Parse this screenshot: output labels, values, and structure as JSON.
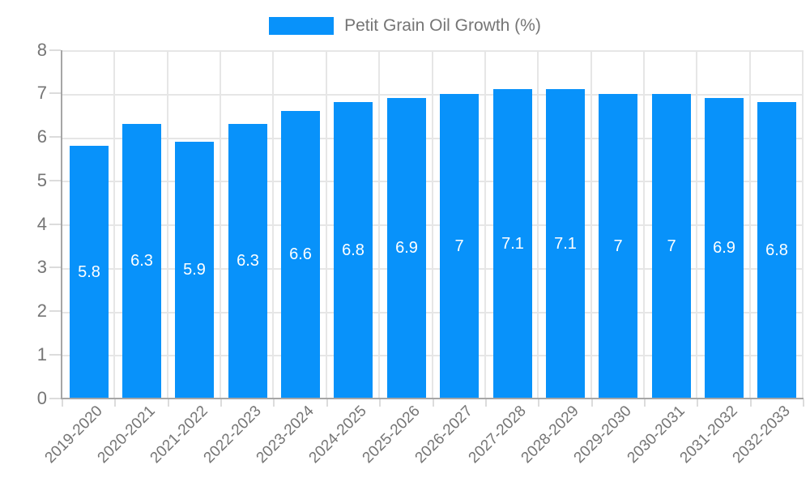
{
  "legend": {
    "label": "Petit Grain Oil Growth (%)"
  },
  "chart_data": {
    "type": "bar",
    "title": "Petit Grain Oil Growth (%)",
    "xlabel": "",
    "ylabel": "",
    "categories": [
      "2019-2020",
      "2020-2021",
      "2021-2022",
      "2022-2023",
      "2023-2024",
      "2024-2025",
      "2025-2026",
      "2026-2027",
      "2027-2028",
      "2028-2029",
      "2029-2030",
      "2030-2031",
      "2031-2032",
      "2032-2033"
    ],
    "values": [
      5.8,
      6.3,
      5.9,
      6.3,
      6.6,
      6.8,
      6.9,
      7,
      7.1,
      7.1,
      7,
      7,
      6.9,
      6.8
    ],
    "series": [
      {
        "name": "Petit Grain Oil Growth (%)",
        "values": [
          5.8,
          6.3,
          5.9,
          6.3,
          6.6,
          6.8,
          6.9,
          7,
          7.1,
          7.1,
          7,
          7,
          6.9,
          6.8
        ]
      }
    ],
    "ylim": [
      0,
      8
    ],
    "yticks": [
      0,
      1,
      2,
      3,
      4,
      5,
      6,
      7,
      8
    ],
    "grid": true,
    "legend_position": "top",
    "value_label_position": "inside-center",
    "colors": {
      "bar": "#0892FA",
      "grid": "#E6E6E6",
      "axis": "#A6A6A6",
      "tick": "#DCDCDC",
      "tick_label": "#757575",
      "value_label": "#FFFFFF",
      "legend_text": "#757575"
    }
  }
}
